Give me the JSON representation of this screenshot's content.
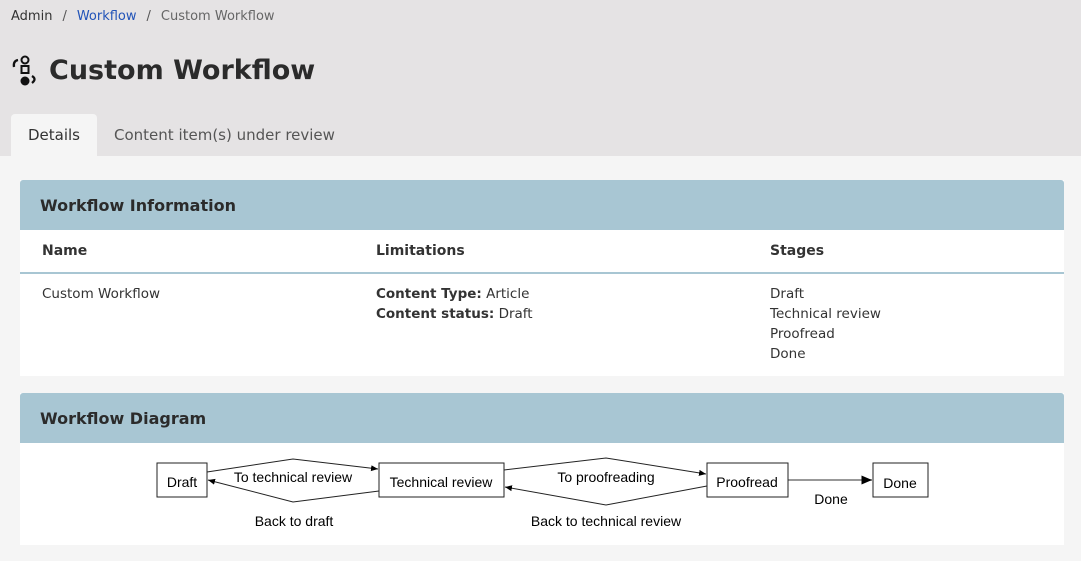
{
  "breadcrumb": {
    "items": [
      "Admin",
      "Workflow",
      "Custom Workflow"
    ]
  },
  "page": {
    "title": "Custom Workflow",
    "icon": "workflow-icon"
  },
  "tabs": [
    {
      "label": "Details",
      "active": true
    },
    {
      "label": "Content item(s) under review",
      "active": false
    }
  ],
  "info": {
    "title": "Workflow Information",
    "headers": {
      "name": "Name",
      "limitations": "Limitations",
      "stages": "Stages"
    },
    "name": "Custom Workflow",
    "limitations": [
      {
        "label": "Content Type:",
        "value": "Article"
      },
      {
        "label": "Content status:",
        "value": "Draft"
      }
    ],
    "stages": [
      "Draft",
      "Technical review",
      "Proofread",
      "Done"
    ]
  },
  "diagram": {
    "title": "Workflow Diagram",
    "nodes": [
      "Draft",
      "Technical review",
      "Proofread",
      "Done"
    ],
    "transitions": [
      "To technical review",
      "Back to draft",
      "To proofreading",
      "Back to technical review",
      "Done"
    ]
  },
  "colors": {
    "panel_header": "#a8c6d3",
    "link": "#2153b8",
    "background": "#e5e3e4"
  }
}
